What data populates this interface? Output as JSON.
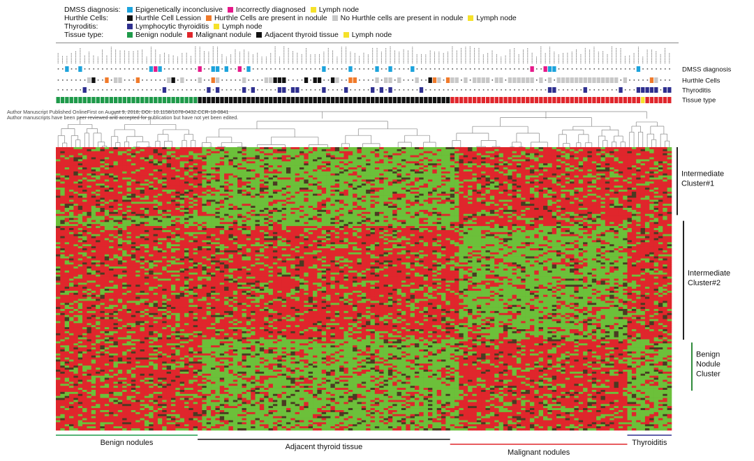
{
  "legend": {
    "rows": [
      {
        "label": "DMSS diagnosis:",
        "items": [
          {
            "text": "Epigenetically inconclusive",
            "color": "#1ca3dc"
          },
          {
            "text": "Incorrectly diagnosed",
            "color": "#e6198a"
          },
          {
            "text": "Lymph node",
            "color": "#f5e12a"
          }
        ]
      },
      {
        "label": "Hurthle Cells:",
        "items": [
          {
            "text": "Hurthle Cell Lession",
            "color": "#111111"
          },
          {
            "text": "Hurthle Cells are present in nodule",
            "color": "#f07a2a"
          },
          {
            "text": "No Hurthle cells are present in nodule",
            "color": "#c8c8c8"
          },
          {
            "text": "Lymph node",
            "color": "#f5e12a"
          }
        ]
      },
      {
        "label": "Thyroditis:",
        "items": [
          {
            "text": "Lymphocytic thyroiditis",
            "color": "#2e2f8f"
          },
          {
            "text": "Lymph node",
            "color": "#f5e12a"
          }
        ]
      },
      {
        "label": "Tissue type:",
        "items": [
          {
            "text": "Benign nodule",
            "color": "#1f9a4a"
          },
          {
            "text": "Malignant nodule",
            "color": "#e0262c"
          },
          {
            "text": "Adjacent thyroid tissue",
            "color": "#111111"
          },
          {
            "text": "Lymph node",
            "color": "#f5e12a"
          }
        ]
      }
    ]
  },
  "notice": {
    "line1": "Author Manuscript Published OnlineFirst on August 9, 2018; DOI: 10.1158/1078-0432.CCR-18-0841",
    "line2": "Author manuscripts have been peer reviewed and accepted for publication but have not yet been edited."
  },
  "chart_data": {
    "type": "heatmap",
    "colors": {
      "high": "#e0262c",
      "low": "#6cc03a",
      "mid": "#4a3a22"
    },
    "annotation_tracks": [
      "DMSS diagnosis",
      "Hurthle Cells",
      "Thyroditis",
      "Tissue type"
    ],
    "column_groups": [
      {
        "name": "Benign nodules",
        "columns": 32,
        "color": "#1f9a4a"
      },
      {
        "name": "Adjacent thyroid tissue",
        "columns": 57,
        "color": "#111111"
      },
      {
        "name": "Malignant nodules",
        "columns": 40,
        "color": "#e0262c"
      },
      {
        "name": "Thyroiditis",
        "columns": 10,
        "color": "#2e2f8f"
      }
    ],
    "row_clusters": [
      {
        "name": "Intermediate Cluster#1",
        "row_fraction": [
          0.0,
          0.24
        ]
      },
      {
        "name": "Intermediate Cluster#2",
        "row_fraction": [
          0.26,
          0.68
        ]
      },
      {
        "name": "Benign Nodule Cluster",
        "row_fraction": [
          0.69,
          0.86
        ]
      }
    ],
    "cluster_pattern": [
      {
        "rows": [
          0.0,
          0.24
        ],
        "levels": [
          "high",
          "low",
          "low",
          "high",
          "high"
        ]
      },
      {
        "rows": [
          0.24,
          0.28
        ],
        "levels": [
          "low",
          "low",
          "low",
          "high",
          "high"
        ]
      },
      {
        "rows": [
          0.28,
          0.68
        ],
        "levels": [
          "high",
          "high",
          "high",
          "low",
          "high"
        ]
      },
      {
        "rows": [
          0.68,
          1.0
        ],
        "levels": [
          "high",
          "low",
          "low",
          "high",
          "low"
        ]
      }
    ],
    "cluster_pattern_column_spans": [
      0.0,
      0.238,
      0.41,
      0.652,
      0.925,
      1.0
    ]
  }
}
